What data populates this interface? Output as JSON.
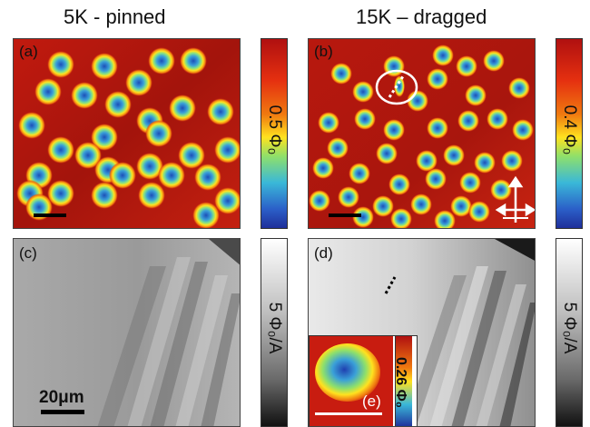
{
  "headings": {
    "left": "5K - pinned",
    "right": "15K – dragged"
  },
  "panels": {
    "a": "(a)",
    "b": "(b)",
    "c": "(c)",
    "d": "(d)",
    "e": "(e)"
  },
  "colorbars": {
    "a": "0.5 Φ₀",
    "b": "0.4 Φ₀",
    "c": "5 Φ₀/A",
    "d": "5 Φ₀/A",
    "e": "0.26 Φ₀"
  },
  "scale_bar_label": "20μm",
  "colors": {
    "vortex_map_background": "#b3170e",
    "vortex_ring": "#ffd21f",
    "vortex_core": "#1f5dc2",
    "susceptibility_light": "#d6d6d6",
    "susceptibility_dark": "#3a3a3a"
  },
  "icons": {
    "drag_direction": "four-way-arrow-icon"
  }
}
